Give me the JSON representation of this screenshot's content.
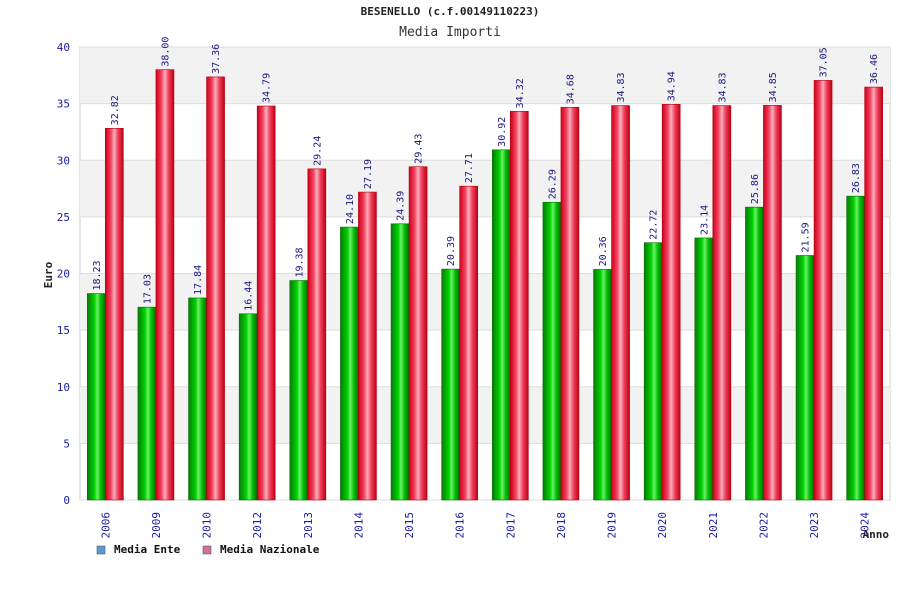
{
  "chart_data": {
    "type": "bar",
    "title": "BESENELLO (c.f.00149110223)",
    "subtitle": "Media Importi",
    "xlabel": "Anno",
    "ylabel": "Euro",
    "ylim": [
      0,
      40
    ],
    "yticks": [
      0,
      5,
      10,
      15,
      20,
      25,
      30,
      35,
      40
    ],
    "grid": true,
    "legend_position": "bottom-left",
    "categories": [
      "2006",
      "2009",
      "2010",
      "2012",
      "2013",
      "2014",
      "2015",
      "2016",
      "2017",
      "2018",
      "2019",
      "2020",
      "2021",
      "2022",
      "2023",
      "2024"
    ],
    "series": [
      {
        "name": "Media Ente",
        "color": "#00b000",
        "legend_color": "#5b9bd5",
        "values": [
          18.23,
          17.03,
          17.84,
          16.44,
          19.38,
          24.1,
          24.39,
          20.39,
          30.92,
          26.29,
          20.36,
          22.72,
          23.14,
          25.86,
          21.59,
          26.83
        ],
        "labels": [
          "18.23",
          "17.03",
          "17.84",
          "16.44",
          "19.38",
          "24.10",
          "24.39",
          "20.39",
          "30.92",
          "26.29",
          "20.36",
          "22.72",
          "23.14",
          "25.86",
          "21.59",
          "26.83"
        ]
      },
      {
        "name": "Media Nazionale",
        "color": "#e8102a",
        "legend_color": "#d070a0",
        "values": [
          32.82,
          38.0,
          37.36,
          34.79,
          29.24,
          27.19,
          29.43,
          27.71,
          34.32,
          34.68,
          34.83,
          34.94,
          34.83,
          34.85,
          37.05,
          36.46
        ],
        "labels": [
          "32.82",
          "38.00",
          "37.36",
          "34.79",
          "29.24",
          "27.19",
          "29.43",
          "27.71",
          "34.32",
          "34.68",
          "34.83",
          "34.94",
          "34.83",
          "34.85",
          "37.05",
          "36.46"
        ]
      }
    ]
  }
}
